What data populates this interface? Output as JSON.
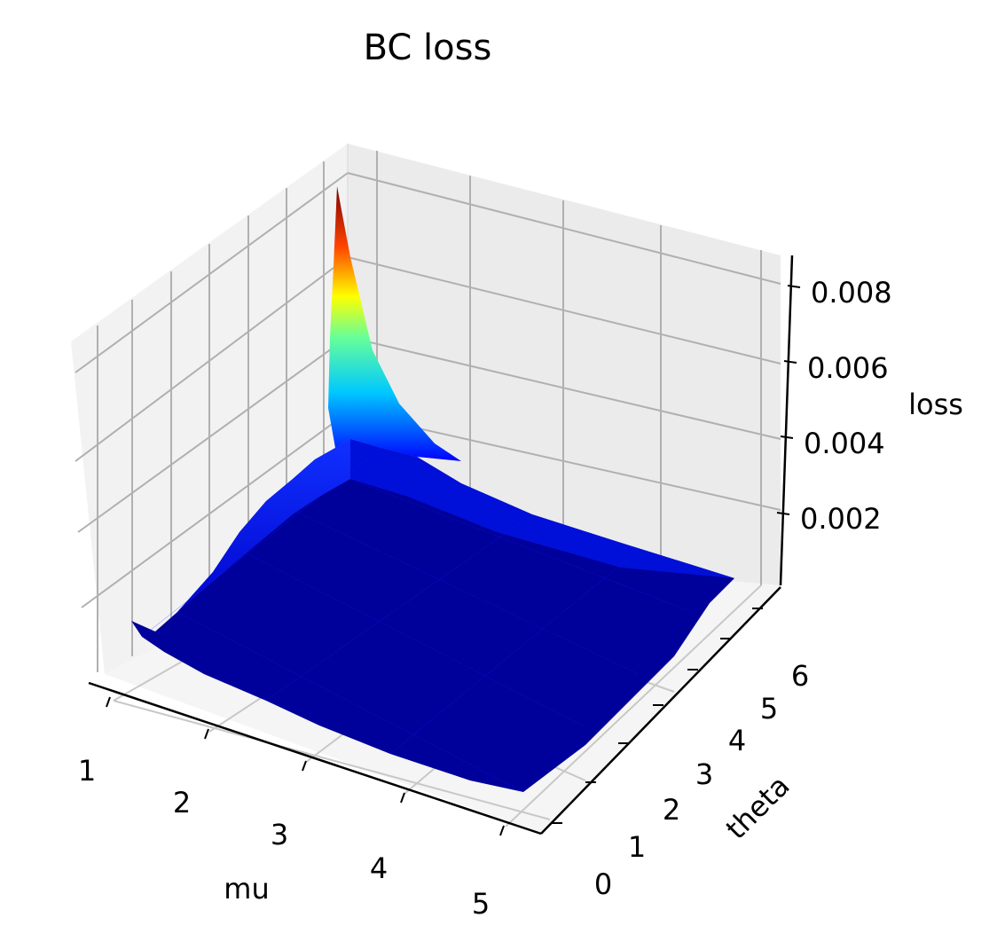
{
  "chart_data": {
    "type": "surface",
    "title": "BC loss",
    "xlabel": "mu",
    "ylabel": "theta",
    "zlabel": "loss",
    "colormap": "jet",
    "x_range": [
      0.5,
      5.3
    ],
    "y_range": [
      0,
      6.5
    ],
    "z_range": [
      0,
      0.0088
    ],
    "x_ticks": [
      "1",
      "2",
      "3",
      "4",
      "5"
    ],
    "y_ticks": [
      "0",
      "1",
      "2",
      "3",
      "4",
      "5",
      "6"
    ],
    "z_ticks": [
      "0.002",
      "0.004",
      "0.006",
      "0.008"
    ],
    "x_tick_values": [
      1,
      2,
      3,
      4,
      5
    ],
    "y_tick_values": [
      0,
      1,
      2,
      3,
      4,
      5,
      6
    ],
    "z_tick_values": [
      0.002,
      0.004,
      0.006,
      0.008
    ],
    "grid": true,
    "surface_samples": [
      {
        "mu": 0.5,
        "theta": 6.2,
        "loss": 0.0088
      },
      {
        "mu": 0.5,
        "theta": 5.0,
        "loss": 0.0045
      },
      {
        "mu": 0.5,
        "theta": 3.0,
        "loss": 0.003
      },
      {
        "mu": 0.5,
        "theta": 1.0,
        "loss": 0.0012
      },
      {
        "mu": 0.5,
        "theta": 0.0,
        "loss": 0.001
      },
      {
        "mu": 1.5,
        "theta": 6.2,
        "loss": 0.0032
      },
      {
        "mu": 3.0,
        "theta": 6.2,
        "loss": 0.001
      },
      {
        "mu": 5.2,
        "theta": 6.2,
        "loss": 0.0004
      },
      {
        "mu": 5.2,
        "theta": 0.0,
        "loss": 0.0001
      }
    ]
  }
}
